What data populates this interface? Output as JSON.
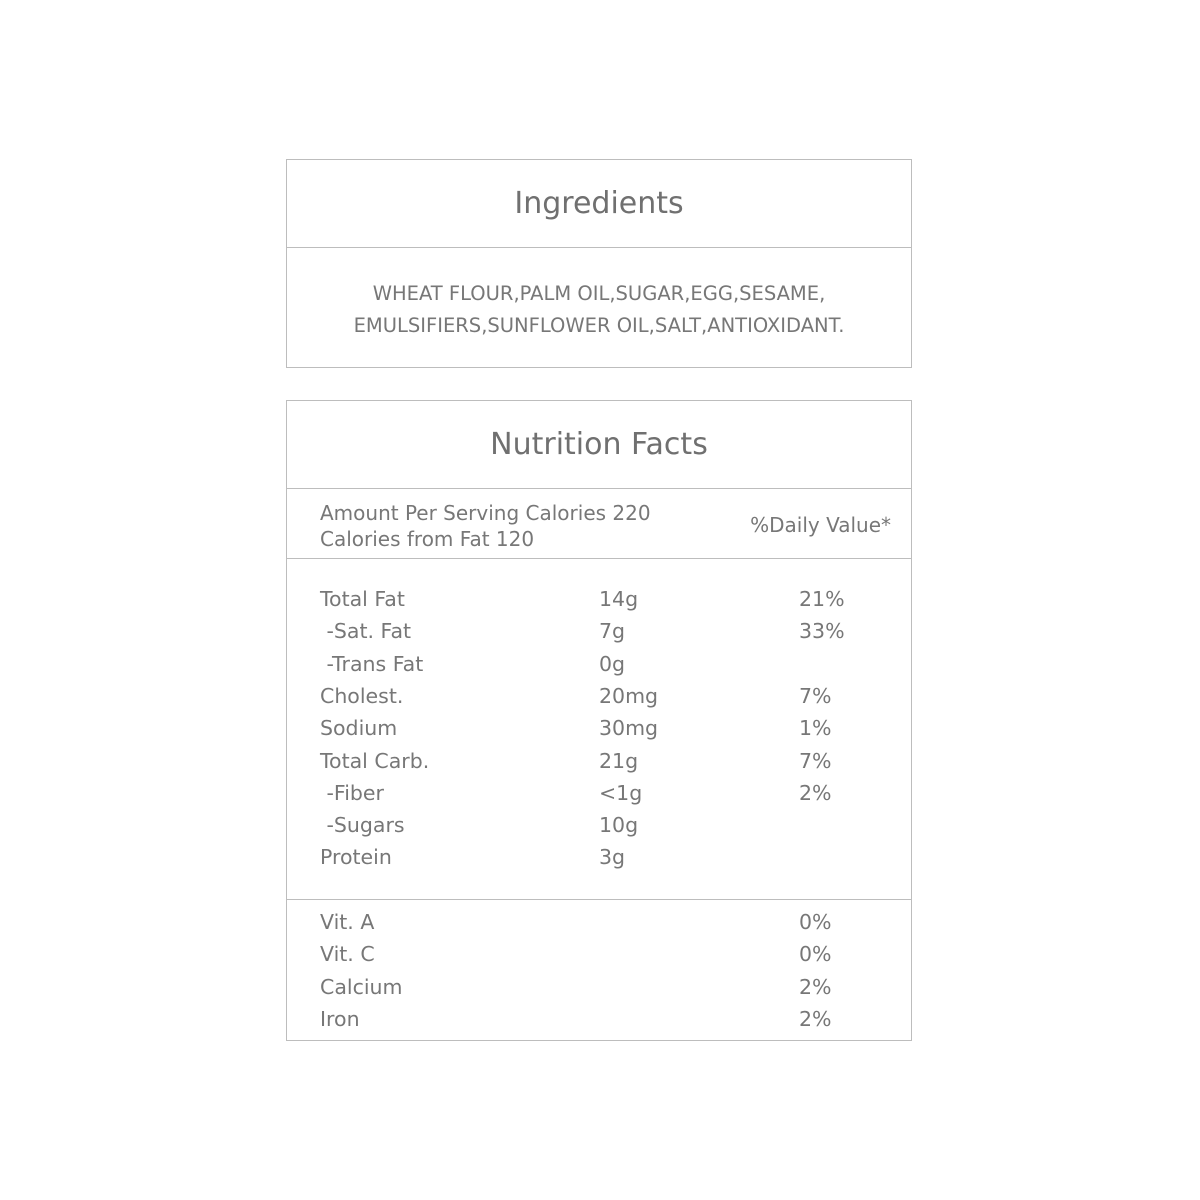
{
  "ingredients": {
    "title": "Ingredients",
    "lines": [
      "WHEAT FLOUR,PALM OIL,SUGAR,EGG,SESAME,",
      "EMULSIFIERS,SUNFLOWER OIL,SALT,ANTIOXIDANT."
    ]
  },
  "nutrition": {
    "title": "Nutrition Facts",
    "amount_line1": "Amount Per Serving Calories  220",
    "amount_line2": "Calories from Fat  120",
    "daily_value_header": "%Daily Value*",
    "nutrients": [
      {
        "name": "Total Fat",
        "amount": "14g",
        "dv": "21%"
      },
      {
        "name": " -Sat. Fat",
        "amount": "7g",
        "dv": "33%"
      },
      {
        "name": " -Trans Fat",
        "amount": "0g",
        "dv": ""
      },
      {
        "name": "Cholest.",
        "amount": "20mg",
        "dv": "7%"
      },
      {
        "name": "Sodium",
        "amount": "30mg",
        "dv": "1%"
      },
      {
        "name": "Total Carb.",
        "amount": "21g",
        "dv": "7%"
      },
      {
        "name": " -Fiber",
        "amount": "<1g",
        "dv": "2%"
      },
      {
        "name": " -Sugars",
        "amount": "10g",
        "dv": ""
      },
      {
        "name": "Protein",
        "amount": "3g",
        "dv": ""
      }
    ],
    "vitamins": [
      {
        "name": "Vit. A",
        "dv": "0%"
      },
      {
        "name": "Vit. C",
        "dv": "0%"
      },
      {
        "name": "Calcium",
        "dv": "2%"
      },
      {
        "name": "Iron",
        "dv": "2%"
      }
    ]
  }
}
